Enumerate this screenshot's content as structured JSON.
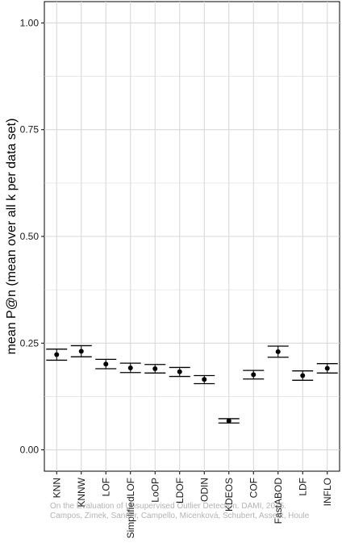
{
  "chart_data": {
    "type": "errorbar",
    "xlabel": "",
    "ylabel": "mean P@n (mean over all k per data set)",
    "ylim": [
      -0.05,
      1.05
    ],
    "yticks": [
      "0.00",
      "0.25",
      "0.50",
      "0.75",
      "1.00"
    ],
    "ytick_values": [
      0,
      0.25,
      0.5,
      0.75,
      1.0
    ],
    "grid": true,
    "colors": {
      "panel": "#ffffff",
      "grid": "#d9d9d9",
      "mark": "#000000"
    },
    "categories": [
      "KNN",
      "KNNW",
      "LOF",
      "SimplifiedLOF",
      "LoOP",
      "LDOF",
      "ODIN",
      "KDEOS",
      "COF",
      "FastABOD",
      "LDF",
      "INFLO"
    ],
    "mean": [
      0.223,
      0.231,
      0.201,
      0.192,
      0.19,
      0.183,
      0.165,
      0.068,
      0.176,
      0.23,
      0.174,
      0.191
    ],
    "lower": [
      0.21,
      0.218,
      0.19,
      0.181,
      0.18,
      0.172,
      0.155,
      0.063,
      0.166,
      0.217,
      0.163,
      0.18
    ],
    "upper": [
      0.236,
      0.244,
      0.212,
      0.203,
      0.2,
      0.193,
      0.174,
      0.073,
      0.186,
      0.243,
      0.185,
      0.202
    ]
  },
  "watermark": {
    "line1": "On the Evaluation of Unsupervised Outlier Detection. DAMI, 2015.",
    "line2": "Campos, Zimek, Sander, Campello, Micenková, Schubert, Assent, Houle"
  }
}
